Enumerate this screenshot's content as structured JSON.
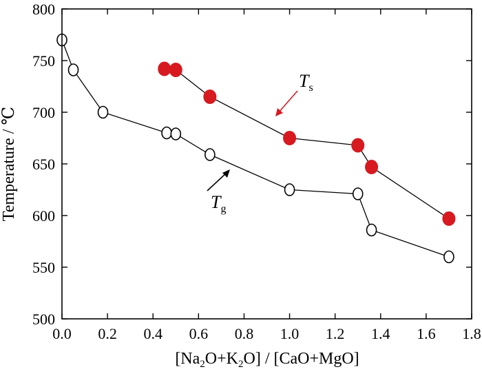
{
  "chart_data": {
    "type": "scatter",
    "xlabel_parts": [
      "[Na",
      "2",
      "O+K",
      "2",
      "O] / [CaO+MgO]"
    ],
    "ylabel": "Temperature / ℃",
    "xlim": [
      0.0,
      1.8
    ],
    "ylim": [
      500,
      800
    ],
    "x_ticks": [
      0.0,
      0.2,
      0.4,
      0.6,
      0.8,
      1.0,
      1.2,
      1.4,
      1.6,
      1.8
    ],
    "x_tick_labels": [
      "0.0",
      "0.2",
      "0.4",
      "0.6",
      "0.8",
      "1.0",
      "1.2",
      "1.4",
      "1.6",
      "1.8"
    ],
    "y_ticks": [
      500,
      550,
      600,
      650,
      700,
      750,
      800
    ],
    "y_tick_labels": [
      "500",
      "550",
      "600",
      "650",
      "700",
      "750",
      "800"
    ],
    "grid": false,
    "series": [
      {
        "label_main": "T",
        "label_sub": "s",
        "marker": "filled-circle",
        "color": "#d71920",
        "x": [
          0.45,
          0.5,
          0.65,
          1.0,
          1.3,
          1.36,
          1.7
        ],
        "y": [
          742,
          741,
          715,
          675,
          668,
          647,
          597
        ]
      },
      {
        "label_main": "T",
        "label_sub": "g",
        "marker": "open-circle",
        "color": "#000000",
        "x": [
          0.0,
          0.05,
          0.18,
          0.46,
          0.5,
          0.65,
          1.0,
          1.3,
          1.36,
          1.7
        ],
        "y": [
          770,
          741,
          700,
          680,
          679,
          659,
          625,
          621,
          586,
          560
        ]
      }
    ]
  }
}
